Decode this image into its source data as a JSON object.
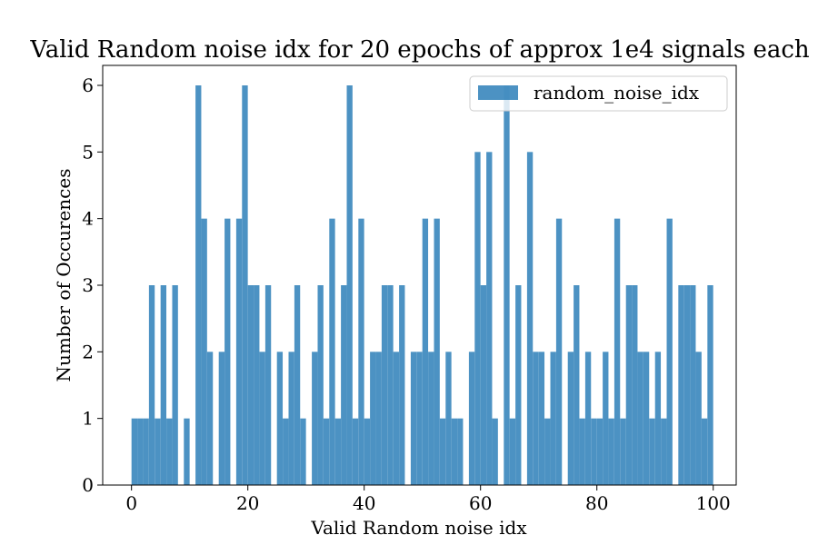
{
  "chart_data": {
    "type": "bar",
    "title": "Valid Random noise idx for 20 epochs of approx 1e4 signals each",
    "xlabel": "Valid Random noise idx",
    "ylabel": "Number of Occurences",
    "x": [
      0,
      1,
      2,
      3,
      4,
      5,
      6,
      7,
      8,
      9,
      10,
      11,
      12,
      13,
      14,
      15,
      16,
      17,
      18,
      19,
      20,
      21,
      22,
      23,
      24,
      25,
      26,
      27,
      28,
      29,
      30,
      31,
      32,
      33,
      34,
      35,
      36,
      37,
      38,
      39,
      40,
      41,
      42,
      43,
      44,
      45,
      46,
      47,
      48,
      49,
      50,
      51,
      52,
      53,
      54,
      55,
      56,
      57,
      58,
      59,
      60,
      61,
      62,
      63,
      64,
      65,
      66,
      67,
      68,
      69,
      70,
      71,
      72,
      73,
      74,
      75,
      76,
      77,
      78,
      79,
      80,
      81,
      82,
      83,
      84,
      85,
      86,
      87,
      88,
      89,
      90,
      91,
      92,
      93,
      94,
      95,
      96,
      97,
      98,
      99
    ],
    "series": [
      {
        "name": "random_noise_idx",
        "values": [
          1,
          1,
          1,
          3,
          1,
          3,
          1,
          3,
          0,
          1,
          0,
          6,
          4,
          2,
          0,
          2,
          4,
          0,
          4,
          6,
          3,
          3,
          2,
          3,
          0,
          2,
          1,
          2,
          3,
          1,
          0,
          2,
          3,
          1,
          4,
          1,
          3,
          6,
          1,
          4,
          1,
          2,
          2,
          3,
          3,
          2,
          3,
          0,
          2,
          2,
          4,
          2,
          4,
          1,
          2,
          1,
          1,
          0,
          2,
          5,
          3,
          5,
          1,
          0,
          6,
          1,
          3,
          0,
          5,
          2,
          2,
          1,
          2,
          4,
          0,
          2,
          3,
          1,
          2,
          1,
          1,
          2,
          1,
          4,
          1,
          3,
          3,
          2,
          2,
          1,
          2,
          1,
          4,
          0,
          3,
          3,
          3,
          2,
          1,
          3
        ],
        "color": "#1f77b4"
      }
    ],
    "xlim": [
      -4.95,
      103.95
    ],
    "ylim": [
      0,
      6.3
    ],
    "xticks": [
      "0",
      "20",
      "40",
      "60",
      "80",
      "100"
    ],
    "yticks": [
      "0",
      "1",
      "2",
      "3",
      "4",
      "5",
      "6"
    ],
    "grid": false,
    "legend": "top-right"
  }
}
